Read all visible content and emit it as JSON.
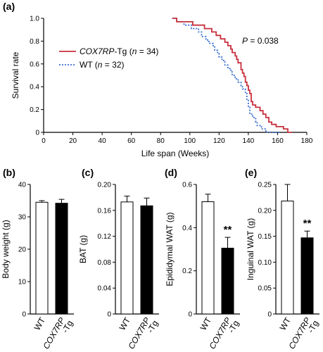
{
  "panels": {
    "a": "(a)",
    "b": "(b)",
    "c": "(c)",
    "d": "(d)",
    "e": "(e)"
  },
  "chart_data": [
    {
      "id": "a",
      "type": "line",
      "step": true,
      "xlabel": "Life span (Weeks)",
      "ylabel": "Survival rate",
      "xlim": [
        0,
        180
      ],
      "ylim": [
        0,
        1.0
      ],
      "xticks": [
        "0",
        "20",
        "40",
        "60",
        "80",
        "100",
        "120",
        "140",
        "160",
        "180"
      ],
      "yticks": [
        "0",
        "0.2",
        "0.4",
        "0.6",
        "0.8",
        "1.0"
      ],
      "annotation": "P = 0.038",
      "grid": false,
      "legend_position": "top-left",
      "series": [
        {
          "name_italic": "COX7RP",
          "name_rest": "-Tg (",
          "n_italic": "n",
          "n_rest": " = 34)",
          "color": "#c8303d",
          "dash": "solid",
          "points": [
            [
              88,
              1.0
            ],
            [
              91,
              1.0
            ],
            [
              91,
              0.97
            ],
            [
              102,
              0.97
            ],
            [
              102,
              0.94
            ],
            [
              110,
              0.94
            ],
            [
              110,
              0.91
            ],
            [
              115,
              0.91
            ],
            [
              115,
              0.88
            ],
            [
              118,
              0.88
            ],
            [
              118,
              0.85
            ],
            [
              121,
              0.85
            ],
            [
              121,
              0.82
            ],
            [
              124,
              0.82
            ],
            [
              124,
              0.79
            ],
            [
              126,
              0.79
            ],
            [
              126,
              0.76
            ],
            [
              128,
              0.76
            ],
            [
              128,
              0.73
            ],
            [
              129,
              0.73
            ],
            [
              129,
              0.7
            ],
            [
              131,
              0.7
            ],
            [
              131,
              0.67
            ],
            [
              132,
              0.67
            ],
            [
              132,
              0.64
            ],
            [
              133,
              0.64
            ],
            [
              133,
              0.61
            ],
            [
              135,
              0.61
            ],
            [
              135,
              0.55
            ],
            [
              136,
              0.55
            ],
            [
              136,
              0.52
            ],
            [
              137,
              0.52
            ],
            [
              137,
              0.49
            ],
            [
              138,
              0.49
            ],
            [
              138,
              0.44
            ],
            [
              139,
              0.44
            ],
            [
              139,
              0.41
            ],
            [
              140,
              0.41
            ],
            [
              140,
              0.37
            ],
            [
              141,
              0.37
            ],
            [
              141,
              0.34
            ],
            [
              142,
              0.34
            ],
            [
              142,
              0.27
            ],
            [
              143,
              0.27
            ],
            [
              143,
              0.24
            ],
            [
              145,
              0.24
            ],
            [
              145,
              0.22
            ],
            [
              148,
              0.22
            ],
            [
              148,
              0.19
            ],
            [
              150,
              0.19
            ],
            [
              150,
              0.16
            ],
            [
              152,
              0.16
            ],
            [
              152,
              0.13
            ],
            [
              154,
              0.13
            ],
            [
              154,
              0.09
            ],
            [
              156,
              0.09
            ],
            [
              156,
              0.07
            ],
            [
              159,
              0.07
            ],
            [
              159,
              0.05
            ],
            [
              164,
              0.05
            ],
            [
              164,
              0.03
            ],
            [
              167,
              0.03
            ],
            [
              167,
              0.0
            ],
            [
              170,
              0.0
            ]
          ]
        },
        {
          "name_italic": "",
          "name_rest": "WT (",
          "n_italic": "n",
          "n_rest": " = 32)",
          "color": "#3a6fd0",
          "dash": "dotted",
          "points": [
            [
              88,
              1.0
            ],
            [
              91,
              1.0
            ],
            [
              91,
              0.97
            ],
            [
              96,
              0.97
            ],
            [
              96,
              0.94
            ],
            [
              101,
              0.94
            ],
            [
              101,
              0.91
            ],
            [
              106,
              0.91
            ],
            [
              106,
              0.88
            ],
            [
              108,
              0.88
            ],
            [
              108,
              0.84
            ],
            [
              111,
              0.84
            ],
            [
              111,
              0.81
            ],
            [
              113,
              0.81
            ],
            [
              113,
              0.78
            ],
            [
              116,
              0.78
            ],
            [
              116,
              0.75
            ],
            [
              117,
              0.75
            ],
            [
              117,
              0.72
            ],
            [
              119,
              0.72
            ],
            [
              119,
              0.69
            ],
            [
              120,
              0.69
            ],
            [
              120,
              0.66
            ],
            [
              122,
              0.66
            ],
            [
              122,
              0.63
            ],
            [
              124,
              0.63
            ],
            [
              124,
              0.59
            ],
            [
              126,
              0.59
            ],
            [
              126,
              0.56
            ],
            [
              128,
              0.56
            ],
            [
              128,
              0.53
            ],
            [
              129,
              0.53
            ],
            [
              129,
              0.5
            ],
            [
              131,
              0.5
            ],
            [
              131,
              0.47
            ],
            [
              133,
              0.47
            ],
            [
              133,
              0.44
            ],
            [
              135,
              0.44
            ],
            [
              135,
              0.41
            ],
            [
              136,
              0.41
            ],
            [
              136,
              0.38
            ],
            [
              138,
              0.38
            ],
            [
              138,
              0.34
            ],
            [
              139,
              0.34
            ],
            [
              139,
              0.28
            ],
            [
              140,
              0.28
            ],
            [
              140,
              0.22
            ],
            [
              141,
              0.22
            ],
            [
              141,
              0.16
            ],
            [
              143,
              0.16
            ],
            [
              143,
              0.13
            ],
            [
              145,
              0.13
            ],
            [
              145,
              0.09
            ],
            [
              146,
              0.09
            ],
            [
              146,
              0.06
            ],
            [
              149,
              0.06
            ],
            [
              149,
              0.03
            ],
            [
              152,
              0.03
            ],
            [
              152,
              0.0
            ],
            [
              162,
              0.0
            ]
          ]
        }
      ]
    },
    {
      "id": "b",
      "type": "bar",
      "ylabel": "Body weight (g)",
      "ylim": [
        0,
        40
      ],
      "yticks": [
        "0",
        "10",
        "20",
        "30",
        "40"
      ],
      "categories": [
        "WT",
        "COX7RP-Tg"
      ],
      "cat_labels": [
        [
          "WT"
        ],
        [
          "COX7RP",
          "-Tg"
        ]
      ],
      "values": [
        34.5,
        34.2
      ],
      "errors": [
        0.5,
        1.2
      ],
      "significance": [
        "",
        ""
      ]
    },
    {
      "id": "c",
      "type": "bar",
      "ylabel": "BAT (g)",
      "ylim": [
        0,
        0.2
      ],
      "yticks": [
        "0",
        "0.04",
        "0.08",
        "0.12",
        "0.16",
        "0.20"
      ],
      "categories": [
        "WT",
        "COX7RP-Tg"
      ],
      "cat_labels": [
        [
          "WT"
        ],
        [
          "COX7RP",
          "-Tg"
        ]
      ],
      "values": [
        0.173,
        0.167
      ],
      "errors": [
        0.009,
        0.012
      ],
      "significance": [
        "",
        ""
      ]
    },
    {
      "id": "d",
      "type": "bar",
      "ylabel": "Epididymal WAT (g)",
      "ylim": [
        0,
        0.6
      ],
      "yticks": [
        "0",
        "0.2",
        "0.4",
        "0.6"
      ],
      "categories": [
        "WT",
        "COX7RP-Tg"
      ],
      "cat_labels": [
        [
          "WT"
        ],
        [
          "COX7RP",
          "-Tg"
        ]
      ],
      "values": [
        0.52,
        0.305
      ],
      "errors": [
        0.035,
        0.05
      ],
      "significance": [
        "",
        "**"
      ]
    },
    {
      "id": "e",
      "type": "bar",
      "ylabel": "Inguinal WAT (g)",
      "ylim": [
        0,
        0.25
      ],
      "yticks": [
        "0",
        "0.05",
        "0.10",
        "0.15",
        "0.20",
        "0.25"
      ],
      "categories": [
        "WT",
        "COX7RP-Tg"
      ],
      "cat_labels": [
        [
          "WT"
        ],
        [
          "COX7RP",
          "-Tg"
        ]
      ],
      "values": [
        0.218,
        0.147
      ],
      "errors": [
        0.032,
        0.013
      ],
      "significance": [
        "",
        "**"
      ]
    }
  ]
}
